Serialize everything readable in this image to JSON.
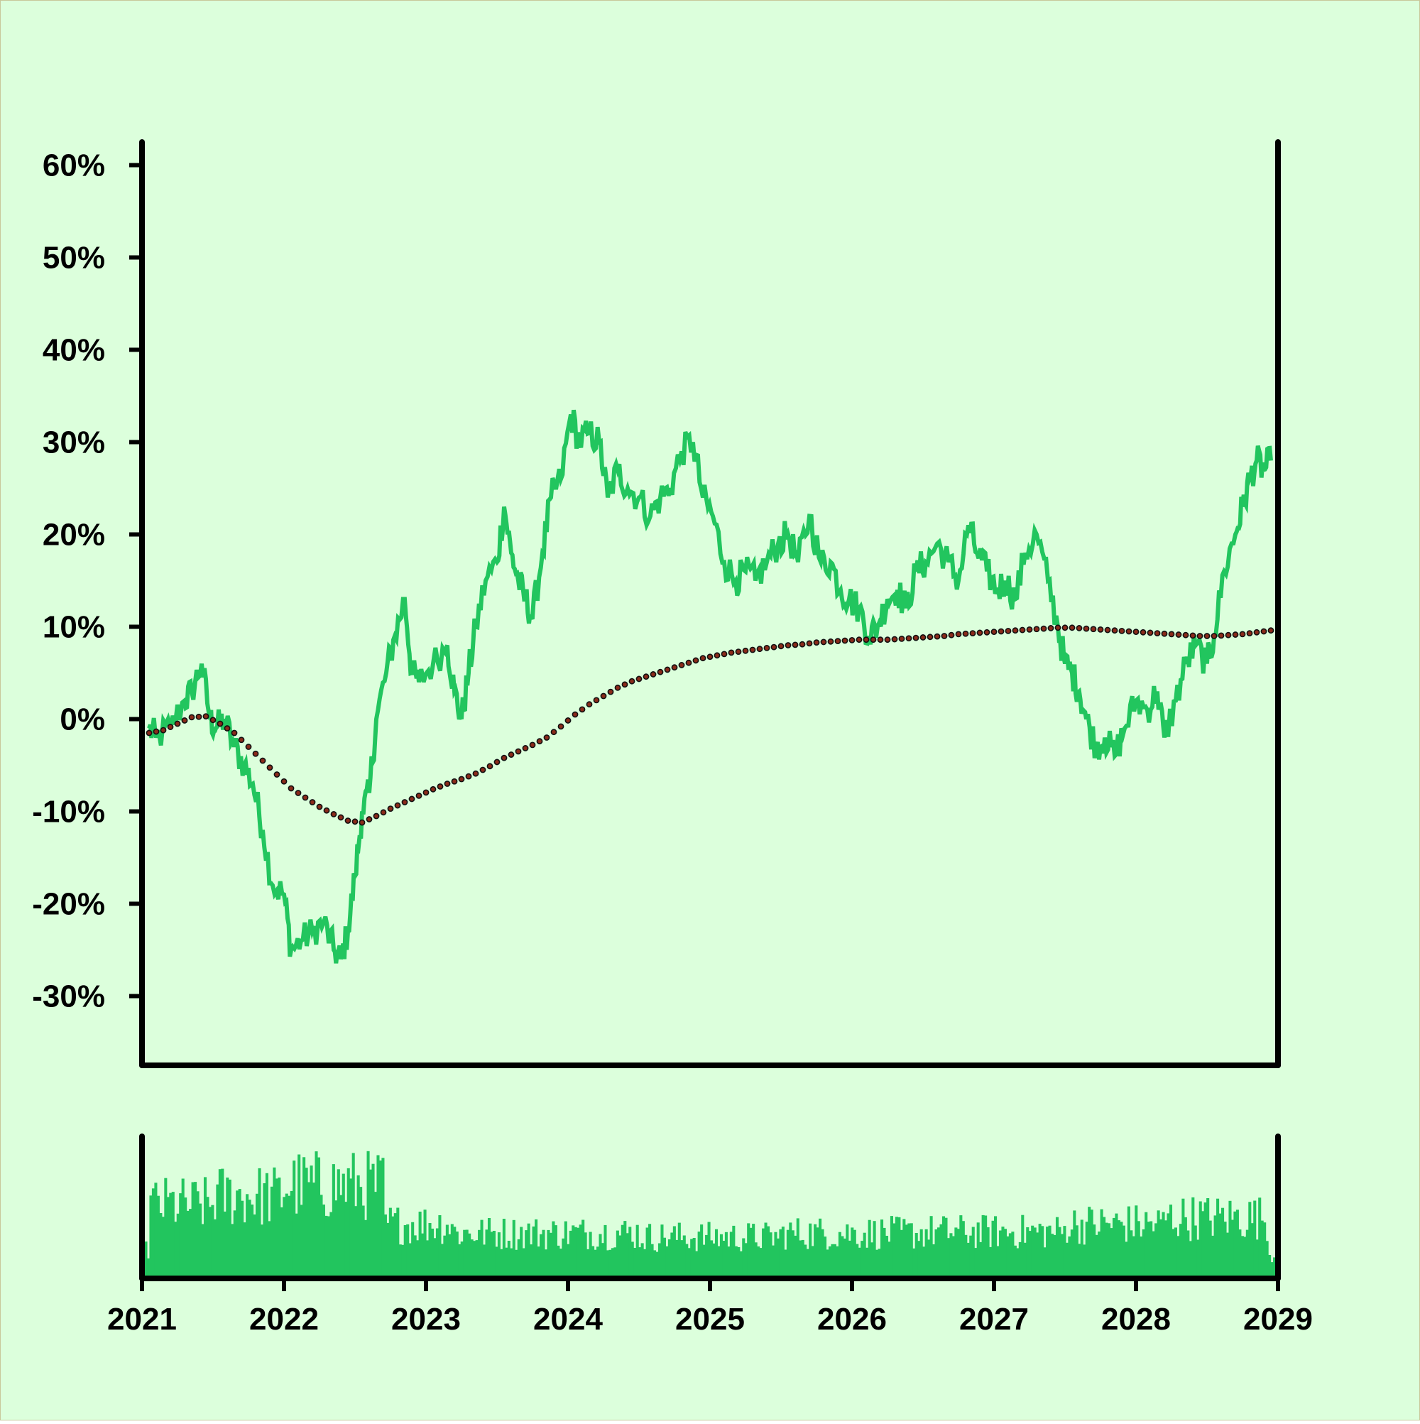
{
  "chart_data": {
    "type": "line",
    "background": "#dcffdc",
    "colors": {
      "price": "#22c55e",
      "trend": "#111111",
      "trend_fill": "#8b2a1a",
      "volume": "#22c55e"
    },
    "x_axis": {
      "ticks": [
        "2021",
        "2022",
        "2023",
        "2024",
        "2025",
        "2026",
        "2027",
        "2028",
        "2029"
      ],
      "xlim": [
        2021,
        2029
      ]
    },
    "y_axis": {
      "ticks": [
        "60%",
        "50%",
        "40%",
        "30%",
        "20%",
        "10%",
        "0%",
        "-10%",
        "-20%",
        "-30%"
      ],
      "tick_values": [
        60,
        50,
        40,
        30,
        20,
        10,
        0,
        -10,
        -20,
        -30
      ],
      "ylim": [
        -37.5,
        62.5
      ]
    },
    "series": [
      {
        "role": "price",
        "style": "solid line",
        "points": [
          [
            2021.05,
            -1
          ],
          [
            2021.1,
            -2
          ],
          [
            2021.2,
            -1
          ],
          [
            2021.3,
            2
          ],
          [
            2021.35,
            3
          ],
          [
            2021.42,
            6
          ],
          [
            2021.48,
            0
          ],
          [
            2021.52,
            -1
          ],
          [
            2021.58,
            0
          ],
          [
            2021.65,
            -3
          ],
          [
            2021.72,
            -5
          ],
          [
            2021.78,
            -7
          ],
          [
            2021.85,
            -12
          ],
          [
            2021.92,
            -18
          ],
          [
            2022.0,
            -19
          ],
          [
            2022.05,
            -25
          ],
          [
            2022.12,
            -24
          ],
          [
            2022.2,
            -23
          ],
          [
            2022.28,
            -22
          ],
          [
            2022.35,
            -25
          ],
          [
            2022.4,
            -26
          ],
          [
            2022.45,
            -23
          ],
          [
            2022.5,
            -17
          ],
          [
            2022.55,
            -10
          ],
          [
            2022.6,
            -8
          ],
          [
            2022.65,
            0
          ],
          [
            2022.72,
            5
          ],
          [
            2022.78,
            9
          ],
          [
            2022.85,
            13
          ],
          [
            2022.9,
            5
          ],
          [
            2022.95,
            4
          ],
          [
            2023.05,
            6
          ],
          [
            2023.15,
            8
          ],
          [
            2023.2,
            3
          ],
          [
            2023.25,
            0
          ],
          [
            2023.3,
            5
          ],
          [
            2023.35,
            10
          ],
          [
            2023.42,
            15
          ],
          [
            2023.5,
            17
          ],
          [
            2023.55,
            23
          ],
          [
            2023.6,
            18
          ],
          [
            2023.65,
            15
          ],
          [
            2023.7,
            13
          ],
          [
            2023.75,
            11
          ],
          [
            2023.82,
            18
          ],
          [
            2023.88,
            24
          ],
          [
            2023.95,
            26
          ],
          [
            2024.02,
            33
          ],
          [
            2024.08,
            30
          ],
          [
            2024.15,
            31
          ],
          [
            2024.22,
            30
          ],
          [
            2024.28,
            24
          ],
          [
            2024.35,
            27
          ],
          [
            2024.42,
            25
          ],
          [
            2024.5,
            24
          ],
          [
            2024.58,
            22
          ],
          [
            2024.65,
            24
          ],
          [
            2024.72,
            25
          ],
          [
            2024.8,
            29
          ],
          [
            2024.88,
            30
          ],
          [
            2024.95,
            24
          ],
          [
            2025.02,
            22
          ],
          [
            2025.1,
            17
          ],
          [
            2025.18,
            15
          ],
          [
            2025.25,
            16
          ],
          [
            2025.32,
            15
          ],
          [
            2025.4,
            17
          ],
          [
            2025.48,
            19
          ],
          [
            2025.55,
            20
          ],
          [
            2025.62,
            17
          ],
          [
            2025.7,
            22
          ],
          [
            2025.78,
            17
          ],
          [
            2025.85,
            17
          ],
          [
            2025.92,
            14
          ],
          [
            2025.98,
            13
          ],
          [
            2026.05,
            12
          ],
          [
            2026.12,
            9
          ],
          [
            2026.18,
            10
          ],
          [
            2026.25,
            13
          ],
          [
            2026.32,
            14
          ],
          [
            2026.38,
            12
          ],
          [
            2026.45,
            16
          ],
          [
            2026.52,
            17
          ],
          [
            2026.6,
            19
          ],
          [
            2026.68,
            17
          ],
          [
            2026.75,
            15
          ],
          [
            2026.82,
            21
          ],
          [
            2026.88,
            18
          ],
          [
            2026.95,
            16
          ],
          [
            2027.02,
            14
          ],
          [
            2027.08,
            15
          ],
          [
            2027.15,
            13
          ],
          [
            2027.22,
            18
          ],
          [
            2027.3,
            20
          ],
          [
            2027.38,
            15
          ],
          [
            2027.45,
            10
          ],
          [
            2027.5,
            6
          ],
          [
            2027.55,
            5
          ],
          [
            2027.6,
            3
          ],
          [
            2027.65,
            0
          ],
          [
            2027.72,
            -3
          ],
          [
            2027.78,
            -2
          ],
          [
            2027.85,
            -4
          ],
          [
            2027.92,
            -1
          ],
          [
            2028.0,
            2
          ],
          [
            2028.08,
            1
          ],
          [
            2028.15,
            3
          ],
          [
            2028.2,
            -2
          ],
          [
            2028.28,
            2
          ],
          [
            2028.35,
            6
          ],
          [
            2028.42,
            8
          ],
          [
            2028.5,
            6
          ],
          [
            2028.55,
            9
          ],
          [
            2028.62,
            16
          ],
          [
            2028.7,
            20
          ],
          [
            2028.75,
            23
          ],
          [
            2028.8,
            26
          ],
          [
            2028.85,
            28
          ],
          [
            2028.9,
            27
          ],
          [
            2028.95,
            28
          ]
        ]
      },
      {
        "role": "trend",
        "style": "dotted line",
        "points": [
          [
            2021.05,
            -1.5
          ],
          [
            2021.15,
            -1.2
          ],
          [
            2021.25,
            -0.5
          ],
          [
            2021.35,
            0.2
          ],
          [
            2021.45,
            0.3
          ],
          [
            2021.55,
            -0.5
          ],
          [
            2021.65,
            -1.5
          ],
          [
            2021.75,
            -3
          ],
          [
            2021.85,
            -4.5
          ],
          [
            2021.95,
            -6
          ],
          [
            2022.05,
            -7.5
          ],
          [
            2022.15,
            -8.5
          ],
          [
            2022.25,
            -9.5
          ],
          [
            2022.35,
            -10.3
          ],
          [
            2022.45,
            -11
          ],
          [
            2022.55,
            -11.2
          ],
          [
            2022.65,
            -10.5
          ],
          [
            2022.75,
            -9.7
          ],
          [
            2022.85,
            -9.0
          ],
          [
            2022.95,
            -8.3
          ],
          [
            2023.05,
            -7.6
          ],
          [
            2023.15,
            -7.0
          ],
          [
            2023.25,
            -6.5
          ],
          [
            2023.35,
            -5.9
          ],
          [
            2023.45,
            -5.1
          ],
          [
            2023.55,
            -4.2
          ],
          [
            2023.65,
            -3.5
          ],
          [
            2023.75,
            -2.8
          ],
          [
            2023.85,
            -2.0
          ],
          [
            2023.95,
            -0.8
          ],
          [
            2024.05,
            0.5
          ],
          [
            2024.15,
            1.6
          ],
          [
            2024.25,
            2.5
          ],
          [
            2024.35,
            3.4
          ],
          [
            2024.45,
            4.1
          ],
          [
            2024.55,
            4.6
          ],
          [
            2024.65,
            5.1
          ],
          [
            2024.75,
            5.6
          ],
          [
            2024.85,
            6.1
          ],
          [
            2024.95,
            6.6
          ],
          [
            2025.05,
            6.9
          ],
          [
            2025.15,
            7.2
          ],
          [
            2025.25,
            7.4
          ],
          [
            2025.35,
            7.6
          ],
          [
            2025.45,
            7.8
          ],
          [
            2025.55,
            8.0
          ],
          [
            2025.65,
            8.1
          ],
          [
            2025.75,
            8.3
          ],
          [
            2025.85,
            8.4
          ],
          [
            2025.95,
            8.5
          ],
          [
            2026.05,
            8.6
          ],
          [
            2026.15,
            8.6
          ],
          [
            2026.25,
            8.6
          ],
          [
            2026.35,
            8.7
          ],
          [
            2026.45,
            8.8
          ],
          [
            2026.55,
            8.9
          ],
          [
            2026.65,
            9.0
          ],
          [
            2026.75,
            9.2
          ],
          [
            2026.85,
            9.3
          ],
          [
            2026.95,
            9.4
          ],
          [
            2027.05,
            9.5
          ],
          [
            2027.15,
            9.6
          ],
          [
            2027.25,
            9.7
          ],
          [
            2027.35,
            9.8
          ],
          [
            2027.45,
            9.9
          ],
          [
            2027.55,
            9.9
          ],
          [
            2027.65,
            9.8
          ],
          [
            2027.75,
            9.7
          ],
          [
            2027.85,
            9.6
          ],
          [
            2027.95,
            9.5
          ],
          [
            2028.05,
            9.4
          ],
          [
            2028.15,
            9.3
          ],
          [
            2028.25,
            9.2
          ],
          [
            2028.35,
            9.1
          ],
          [
            2028.45,
            9.0
          ],
          [
            2028.55,
            9.0
          ],
          [
            2028.65,
            9.1
          ],
          [
            2028.75,
            9.2
          ],
          [
            2028.85,
            9.4
          ],
          [
            2028.95,
            9.6
          ]
        ]
      },
      {
        "role": "volume",
        "style": "bars",
        "ylim": [
          0,
          1
        ],
        "segments": [
          [
            2021.0,
            2021.5,
            0.55
          ],
          [
            2021.5,
            2022.0,
            0.62
          ],
          [
            2022.0,
            2022.7,
            0.7
          ],
          [
            2022.7,
            2023.2,
            0.4
          ],
          [
            2023.2,
            2024.5,
            0.33
          ],
          [
            2024.5,
            2025.5,
            0.3
          ],
          [
            2025.5,
            2026.5,
            0.33
          ],
          [
            2026.5,
            2027.5,
            0.34
          ],
          [
            2027.5,
            2028.2,
            0.4
          ],
          [
            2028.2,
            2029.0,
            0.45
          ]
        ]
      }
    ]
  }
}
